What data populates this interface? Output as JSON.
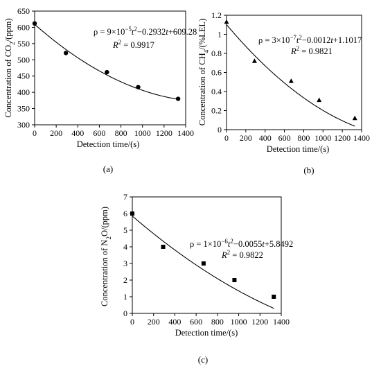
{
  "chart_data": [
    {
      "type": "scatter",
      "panel_label": "(a)",
      "xlabel": "Detection time/(s)",
      "ylabel_parts": [
        "Concentration of CO",
        "2",
        "/(ppm)"
      ],
      "equation_parts": [
        "ρ = 9×10",
        "−5",
        "t",
        "2",
        "−0.2932",
        "t",
        "+609.28"
      ],
      "r2_parts": [
        "R",
        "2",
        " = 0.9917"
      ],
      "xlim": [
        0,
        1400
      ],
      "ylim": [
        300,
        650
      ],
      "xticks": [
        0,
        200,
        400,
        600,
        800,
        1000,
        1200,
        1400
      ],
      "yticks": [
        300,
        350,
        400,
        450,
        500,
        550,
        600,
        650
      ],
      "marker": "circle",
      "grid": false,
      "points": [
        {
          "x": 0,
          "y": 612
        },
        {
          "x": 290,
          "y": 521
        },
        {
          "x": 670,
          "y": 462
        },
        {
          "x": 960,
          "y": 416
        },
        {
          "x": 1330,
          "y": 380
        }
      ],
      "fit": {
        "a": 9e-05,
        "b": -0.2932,
        "c": 609.28
      }
    },
    {
      "type": "scatter",
      "panel_label": "(b)",
      "xlabel": "Detection time/(s)",
      "ylabel_parts": [
        "Concentration of CH",
        "4",
        "/(%LEL)"
      ],
      "equation_parts": [
        "ρ = 3×10",
        "−7",
        "t",
        "2",
        "−0.0012",
        "t",
        "+1.1017"
      ],
      "r2_parts": [
        "R",
        "2",
        " = 0.9821"
      ],
      "xlim": [
        0,
        1400
      ],
      "ylim": [
        0,
        1.2
      ],
      "xticks": [
        0,
        200,
        400,
        600,
        800,
        1000,
        1200,
        1400
      ],
      "yticks": [
        0,
        0.2,
        0.4,
        0.6,
        0.8,
        1,
        1.2
      ],
      "marker": "triangle",
      "grid": false,
      "points": [
        {
          "x": 0,
          "y": 1.13
        },
        {
          "x": 290,
          "y": 0.72
        },
        {
          "x": 670,
          "y": 0.51
        },
        {
          "x": 960,
          "y": 0.31
        },
        {
          "x": 1330,
          "y": 0.12
        }
      ],
      "fit": {
        "a": 3e-07,
        "b": -0.0012,
        "c": 1.1017
      }
    },
    {
      "type": "scatter",
      "panel_label": "(c)",
      "xlabel": "Detection time/(s)",
      "ylabel_parts": [
        "Concentration of N",
        "2",
        "O/(ppm)"
      ],
      "equation_parts": [
        "ρ = 1×10",
        "−6",
        "t",
        "2",
        "−0.0055",
        "t",
        "+5.8492"
      ],
      "r2_parts": [
        "R",
        "2",
        " = 0.9822"
      ],
      "xlim": [
        0,
        1400
      ],
      "ylim": [
        0,
        7
      ],
      "xticks": [
        0,
        200,
        400,
        600,
        800,
        1000,
        1200,
        1400
      ],
      "yticks": [
        0,
        1,
        2,
        3,
        4,
        5,
        6,
        7
      ],
      "marker": "square",
      "grid": false,
      "points": [
        {
          "x": 0,
          "y": 6
        },
        {
          "x": 290,
          "y": 4
        },
        {
          "x": 670,
          "y": 3
        },
        {
          "x": 960,
          "y": 2
        },
        {
          "x": 1330,
          "y": 1
        }
      ],
      "fit": {
        "a": 1e-06,
        "b": -0.0055,
        "c": 5.8492
      }
    }
  ]
}
